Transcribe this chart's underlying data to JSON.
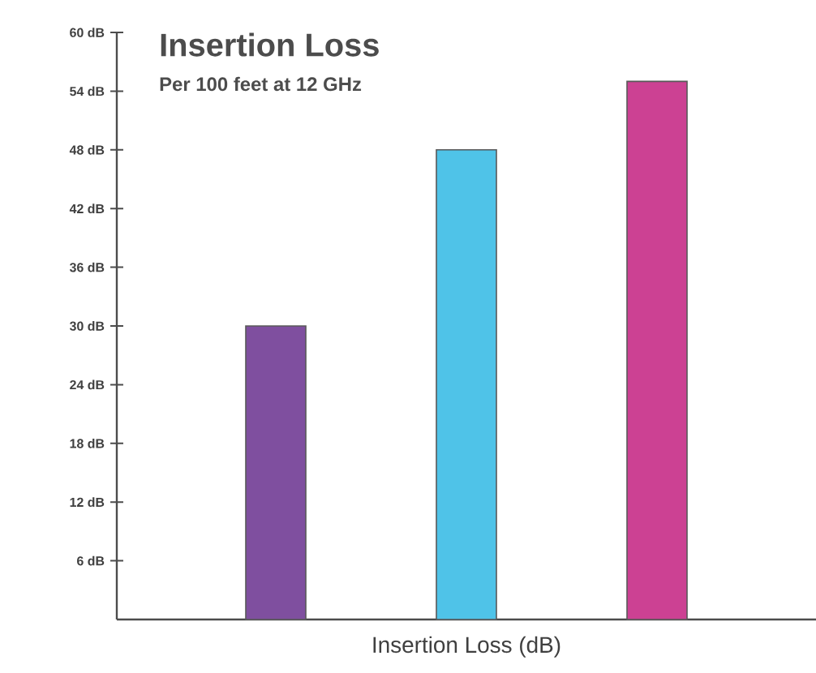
{
  "chart_data": {
    "type": "bar",
    "title": "Insertion Loss",
    "subtitle": "Per 100 feet at 12 GHz",
    "xlabel": "Insertion Loss (dB)",
    "categories": [
      null,
      null,
      null
    ],
    "values": [
      30,
      48,
      55
    ],
    "colors": [
      "#7f4f9f",
      "#4fc3e8",
      "#cc4193"
    ],
    "ylim": [
      0,
      60
    ],
    "yticks": [
      {
        "value": 6,
        "label": "6 dB"
      },
      {
        "value": 12,
        "label": "12 dB"
      },
      {
        "value": 18,
        "label": "18 dB"
      },
      {
        "value": 24,
        "label": "24 dB"
      },
      {
        "value": 30,
        "label": "30 dB"
      },
      {
        "value": 36,
        "label": "36 dB"
      },
      {
        "value": 42,
        "label": "42 dB"
      },
      {
        "value": 48,
        "label": "48 dB"
      },
      {
        "value": 54,
        "label": "54 dB"
      },
      {
        "value": 60,
        "label": "60 dB"
      }
    ]
  }
}
